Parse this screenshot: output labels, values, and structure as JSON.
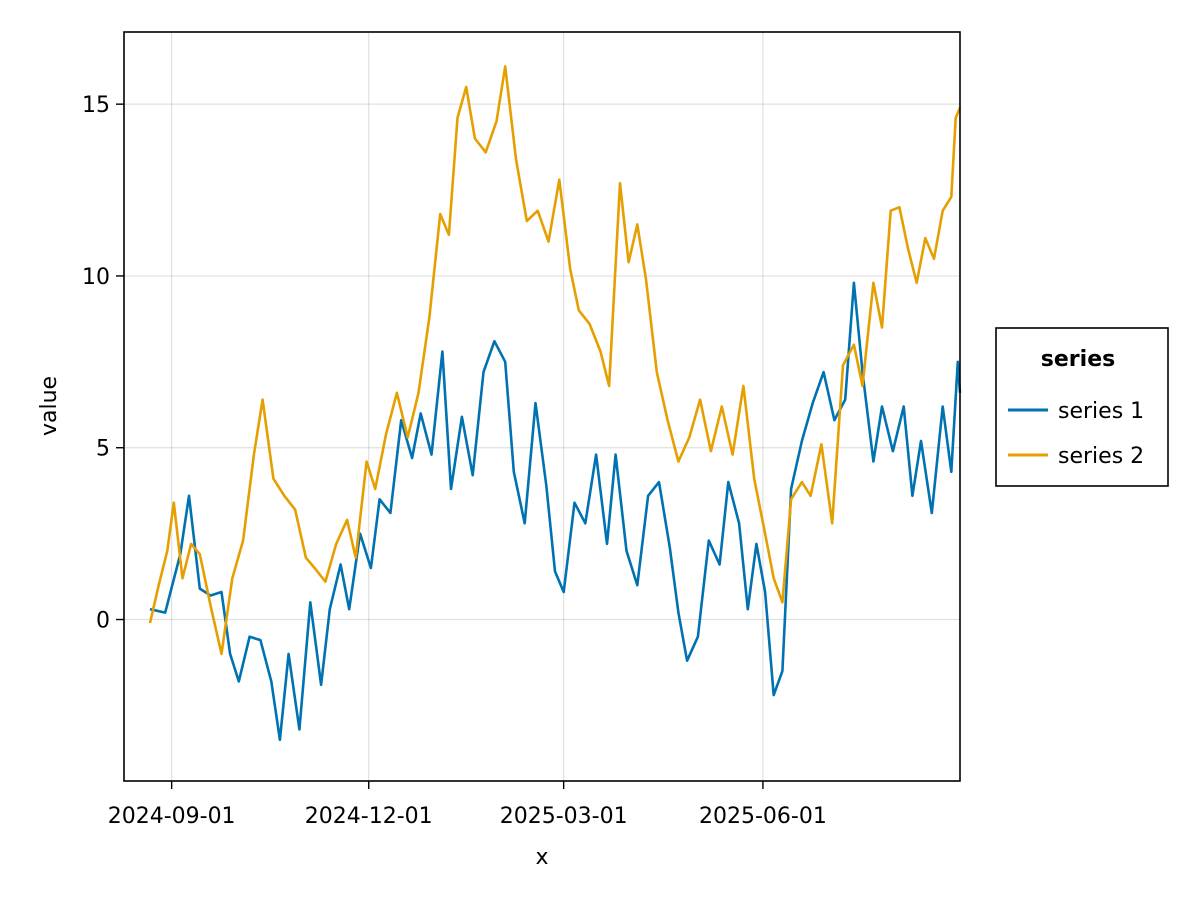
{
  "chart_data": {
    "type": "line",
    "title": "",
    "xlabel": "x",
    "ylabel": "value",
    "x_axis_type": "date",
    "xlim": [
      "2024-08-10",
      "2025-08-31"
    ],
    "ylim": [
      -4.7,
      17.1
    ],
    "x_ticks": [
      "2024-09-01",
      "2024-12-01",
      "2025-03-01",
      "2025-06-01"
    ],
    "y_ticks": [
      0,
      5,
      10,
      15
    ],
    "grid": true,
    "legend": {
      "title": "series",
      "placement": "right"
    },
    "series": [
      {
        "name": "series 1",
        "color": "#0072b2",
        "points": [
          [
            "2024-08-22",
            0.3
          ],
          [
            "2024-08-29",
            0.2
          ],
          [
            "2024-09-05",
            1.9
          ],
          [
            "2024-09-09",
            3.6
          ],
          [
            "2024-09-14",
            0.9
          ],
          [
            "2024-09-19",
            0.7
          ],
          [
            "2024-09-24",
            0.8
          ],
          [
            "2024-09-28",
            -1.0
          ],
          [
            "2024-10-02",
            -1.8
          ],
          [
            "2024-10-07",
            -0.5
          ],
          [
            "2024-10-12",
            -0.6
          ],
          [
            "2024-10-17",
            -1.8
          ],
          [
            "2024-10-21",
            -3.5
          ],
          [
            "2024-10-25",
            -1.0
          ],
          [
            "2024-10-30",
            -3.2
          ],
          [
            "2024-11-04",
            0.5
          ],
          [
            "2024-11-09",
            -1.9
          ],
          [
            "2024-11-13",
            0.3
          ],
          [
            "2024-11-18",
            1.6
          ],
          [
            "2024-11-22",
            0.3
          ],
          [
            "2024-11-27",
            2.5
          ],
          [
            "2024-12-02",
            1.5
          ],
          [
            "2024-12-06",
            3.5
          ],
          [
            "2024-12-11",
            3.1
          ],
          [
            "2024-12-16",
            5.8
          ],
          [
            "2024-12-21",
            4.7
          ],
          [
            "2024-12-25",
            6.0
          ],
          [
            "2024-12-30",
            4.8
          ],
          [
            "2025-01-04",
            7.8
          ],
          [
            "2025-01-08",
            3.8
          ],
          [
            "2025-01-13",
            5.9
          ],
          [
            "2025-01-18",
            4.2
          ],
          [
            "2025-01-23",
            7.2
          ],
          [
            "2025-01-28",
            8.1
          ],
          [
            "2025-02-02",
            7.5
          ],
          [
            "2025-02-06",
            4.3
          ],
          [
            "2025-02-11",
            2.8
          ],
          [
            "2025-02-16",
            6.3
          ],
          [
            "2025-02-21",
            3.9
          ],
          [
            "2025-02-25",
            1.4
          ],
          [
            "2025-03-01",
            0.8
          ],
          [
            "2025-03-06",
            3.4
          ],
          [
            "2025-03-11",
            2.8
          ],
          [
            "2025-03-16",
            4.8
          ],
          [
            "2025-03-21",
            2.2
          ],
          [
            "2025-03-25",
            4.8
          ],
          [
            "2025-03-30",
            2.0
          ],
          [
            "2025-04-04",
            1.0
          ],
          [
            "2025-04-09",
            3.6
          ],
          [
            "2025-04-14",
            4.0
          ],
          [
            "2025-04-19",
            2.1
          ],
          [
            "2025-04-23",
            0.2
          ],
          [
            "2025-04-27",
            -1.2
          ],
          [
            "2025-05-02",
            -0.5
          ],
          [
            "2025-05-07",
            2.3
          ],
          [
            "2025-05-12",
            1.6
          ],
          [
            "2025-05-16",
            4.0
          ],
          [
            "2025-05-21",
            2.8
          ],
          [
            "2025-05-25",
            0.3
          ],
          [
            "2025-05-29",
            2.2
          ],
          [
            "2025-06-02",
            0.8
          ],
          [
            "2025-06-06",
            -2.2
          ],
          [
            "2025-06-10",
            -1.5
          ],
          [
            "2025-06-14",
            3.8
          ],
          [
            "2025-06-19",
            5.2
          ],
          [
            "2025-06-24",
            6.3
          ],
          [
            "2025-06-29",
            7.2
          ],
          [
            "2025-07-04",
            5.8
          ],
          [
            "2025-07-09",
            6.4
          ],
          [
            "2025-07-13",
            9.8
          ],
          [
            "2025-07-17",
            7.2
          ],
          [
            "2025-07-22",
            4.6
          ],
          [
            "2025-07-26",
            6.2
          ],
          [
            "2025-07-31",
            4.9
          ],
          [
            "2025-08-05",
            6.2
          ],
          [
            "2025-08-09",
            3.6
          ],
          [
            "2025-08-13",
            5.2
          ],
          [
            "2025-08-18",
            3.1
          ],
          [
            "2025-08-23",
            6.2
          ],
          [
            "2025-08-27",
            4.3
          ],
          [
            "2025-08-30",
            7.5
          ],
          [
            "2025-08-31",
            6.6
          ]
        ]
      },
      {
        "name": "series 2",
        "color": "#e69f00",
        "points": [
          [
            "2024-08-22",
            -0.1
          ],
          [
            "2024-08-26",
            1.0
          ],
          [
            "2024-08-30",
            2.0
          ],
          [
            "2024-09-02",
            3.4
          ],
          [
            "2024-09-06",
            1.2
          ],
          [
            "2024-09-10",
            2.2
          ],
          [
            "2024-09-14",
            1.9
          ],
          [
            "2024-09-19",
            0.4
          ],
          [
            "2024-09-24",
            -1.0
          ],
          [
            "2024-09-29",
            1.2
          ],
          [
            "2024-10-04",
            2.3
          ],
          [
            "2024-10-09",
            4.8
          ],
          [
            "2024-10-13",
            6.4
          ],
          [
            "2024-10-18",
            4.1
          ],
          [
            "2024-10-23",
            3.6
          ],
          [
            "2024-10-28",
            3.2
          ],
          [
            "2024-11-02",
            1.8
          ],
          [
            "2024-11-06",
            1.5
          ],
          [
            "2024-11-11",
            1.1
          ],
          [
            "2024-11-16",
            2.2
          ],
          [
            "2024-11-21",
            2.9
          ],
          [
            "2024-11-25",
            1.8
          ],
          [
            "2024-11-30",
            4.6
          ],
          [
            "2024-12-04",
            3.8
          ],
          [
            "2024-12-09",
            5.4
          ],
          [
            "2024-12-14",
            6.6
          ],
          [
            "2024-12-19",
            5.3
          ],
          [
            "2024-12-24",
            6.6
          ],
          [
            "2024-12-29",
            8.8
          ],
          [
            "2025-01-03",
            11.8
          ],
          [
            "2025-01-07",
            11.2
          ],
          [
            "2025-01-11",
            14.6
          ],
          [
            "2025-01-15",
            15.5
          ],
          [
            "2025-01-19",
            14.0
          ],
          [
            "2025-01-24",
            13.6
          ],
          [
            "2025-01-29",
            14.5
          ],
          [
            "2025-02-02",
            16.1
          ],
          [
            "2025-02-07",
            13.4
          ],
          [
            "2025-02-12",
            11.6
          ],
          [
            "2025-02-17",
            11.9
          ],
          [
            "2025-02-22",
            11.0
          ],
          [
            "2025-02-27",
            12.8
          ],
          [
            "2025-03-04",
            10.2
          ],
          [
            "2025-03-08",
            9.0
          ],
          [
            "2025-03-13",
            8.6
          ],
          [
            "2025-03-18",
            7.8
          ],
          [
            "2025-03-22",
            6.8
          ],
          [
            "2025-03-27",
            12.7
          ],
          [
            "2025-03-31",
            10.4
          ],
          [
            "2025-04-04",
            11.5
          ],
          [
            "2025-04-08",
            9.9
          ],
          [
            "2025-04-13",
            7.2
          ],
          [
            "2025-04-18",
            5.8
          ],
          [
            "2025-04-23",
            4.6
          ],
          [
            "2025-04-28",
            5.3
          ],
          [
            "2025-05-03",
            6.4
          ],
          [
            "2025-05-08",
            4.9
          ],
          [
            "2025-05-13",
            6.2
          ],
          [
            "2025-05-18",
            4.8
          ],
          [
            "2025-05-23",
            6.8
          ],
          [
            "2025-05-28",
            4.1
          ],
          [
            "2025-06-02",
            2.5
          ],
          [
            "2025-06-06",
            1.2
          ],
          [
            "2025-06-10",
            0.5
          ],
          [
            "2025-06-14",
            3.5
          ],
          [
            "2025-06-19",
            4.0
          ],
          [
            "2025-06-23",
            3.6
          ],
          [
            "2025-06-28",
            5.1
          ],
          [
            "2025-07-03",
            2.8
          ],
          [
            "2025-07-08",
            7.4
          ],
          [
            "2025-07-13",
            8.0
          ],
          [
            "2025-07-17",
            6.8
          ],
          [
            "2025-07-22",
            9.8
          ],
          [
            "2025-07-26",
            8.5
          ],
          [
            "2025-07-30",
            11.9
          ],
          [
            "2025-08-03",
            12.0
          ],
          [
            "2025-08-07",
            10.8
          ],
          [
            "2025-08-11",
            9.8
          ],
          [
            "2025-08-15",
            11.1
          ],
          [
            "2025-08-19",
            10.5
          ],
          [
            "2025-08-23",
            11.9
          ],
          [
            "2025-08-27",
            12.3
          ],
          [
            "2025-08-29",
            14.6
          ],
          [
            "2025-08-31",
            14.9
          ]
        ]
      }
    ]
  }
}
